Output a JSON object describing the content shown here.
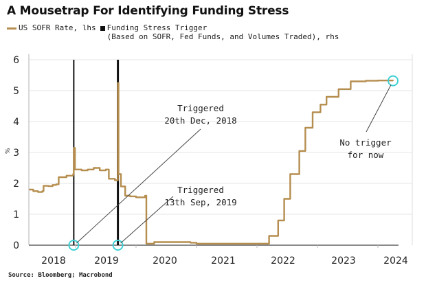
{
  "title": "A Mousetrap For Identifying Funding Stress",
  "legend": {
    "series1": "US SOFR Rate, lhs",
    "series2_line1": "Funding Stress Trigger",
    "series2_line2": "(Based on SOFR, Fed Funds, and Volumes Traded), rhs"
  },
  "source": "Source: Bloomberg; Macrobond",
  "colors": {
    "sofr": "#b58d4e",
    "trigger": "#111111",
    "marker": "#3fd0d4",
    "grid": "#e4e4e4"
  },
  "chart_data": {
    "type": "line",
    "title": "A Mousetrap For Identifying Funding Stress",
    "ylabel": "%",
    "xlabel": "",
    "ylim": [
      0,
      6
    ],
    "xlim": [
      2018.23,
      2024.3
    ],
    "yticks": [
      0,
      1,
      2,
      3,
      4,
      5,
      6
    ],
    "xticks": [
      "2018",
      "2019",
      "2020",
      "2021",
      "2022",
      "2023",
      "2024"
    ],
    "grid": true,
    "legend_position": "top-left",
    "series": [
      {
        "name": "US SOFR Rate, lhs",
        "points": [
          [
            2018.23,
            1.8
          ],
          [
            2018.3,
            1.75
          ],
          [
            2018.38,
            1.72
          ],
          [
            2018.45,
            1.75
          ],
          [
            2018.47,
            1.92
          ],
          [
            2018.55,
            1.91
          ],
          [
            2018.62,
            1.95
          ],
          [
            2018.68,
            1.97
          ],
          [
            2018.72,
            2.2
          ],
          [
            2018.85,
            2.25
          ],
          [
            2018.96,
            2.3
          ],
          [
            2018.97,
            3.15
          ],
          [
            2018.99,
            2.45
          ],
          [
            2019.1,
            2.42
          ],
          [
            2019.2,
            2.45
          ],
          [
            2019.3,
            2.5
          ],
          [
            2019.4,
            2.42
          ],
          [
            2019.5,
            2.45
          ],
          [
            2019.55,
            2.15
          ],
          [
            2019.65,
            2.1
          ],
          [
            2019.7,
            5.25
          ],
          [
            2019.71,
            2.3
          ],
          [
            2019.75,
            1.9
          ],
          [
            2019.82,
            1.6
          ],
          [
            2019.9,
            1.58
          ],
          [
            2020.0,
            1.55
          ],
          [
            2020.15,
            1.6
          ],
          [
            2020.17,
            0.05
          ],
          [
            2020.3,
            0.1
          ],
          [
            2020.6,
            0.1
          ],
          [
            2020.9,
            0.08
          ],
          [
            2021.0,
            0.05
          ],
          [
            2021.5,
            0.05
          ],
          [
            2021.55,
            0.05
          ],
          [
            2022.0,
            0.05
          ],
          [
            2022.2,
            0.3
          ],
          [
            2022.35,
            0.8
          ],
          [
            2022.45,
            1.5
          ],
          [
            2022.55,
            2.3
          ],
          [
            2022.7,
            3.05
          ],
          [
            2022.8,
            3.8
          ],
          [
            2022.92,
            4.3
          ],
          [
            2023.05,
            4.55
          ],
          [
            2023.15,
            4.8
          ],
          [
            2023.35,
            5.05
          ],
          [
            2023.55,
            5.3
          ],
          [
            2023.8,
            5.32
          ],
          [
            2024.0,
            5.33
          ],
          [
            2024.25,
            5.32
          ]
        ]
      },
      {
        "name": "Funding Stress Trigger (Based on SOFR, Fed Funds, and Volumes Traded), rhs",
        "triggers": [
          {
            "date": "20th Dec, 2018",
            "x": 2018.97
          },
          {
            "date": "13th Sep, 2019",
            "x": 2019.7
          }
        ]
      }
    ],
    "annotations": [
      {
        "text_line1": "Triggered",
        "text_line2": "20th Dec, 2018",
        "x": 2018.97,
        "y": 0
      },
      {
        "text_line1": "Triggered",
        "text_line2": "13th Sep, 2019",
        "x": 2019.7,
        "y": 0
      },
      {
        "text_line1": "No trigger",
        "text_line2": "for now",
        "x": 2024.25,
        "y": 5.32
      }
    ]
  }
}
